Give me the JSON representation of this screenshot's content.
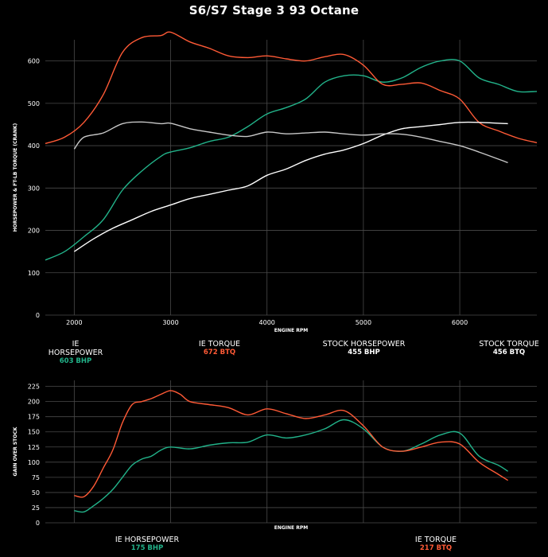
{
  "title": "S6/S7 Stage 3 93 Octane",
  "colors": {
    "ie_hp": "#22b38a",
    "ie_tq": "#ff5a36",
    "stock_hp": "#ffffff",
    "stock_tq": "#c8c8c8",
    "grid": "#4a4a4a"
  },
  "legend_top": {
    "ie_hp": {
      "name": "IE HORSEPOWER",
      "value": "603 BHP"
    },
    "ie_tq": {
      "name": "IE TORQUE",
      "value": "672 BTQ"
    },
    "stock_hp": {
      "name": "STOCK HORSEPOWER",
      "value": "455 BHP"
    },
    "stock_tq": {
      "name": "STOCK TORQUE",
      "value": "456 BTQ"
    }
  },
  "legend_bottom": {
    "ie_hp": {
      "name": "IE HORSEPOWER",
      "value": "175 BHP"
    },
    "ie_tq": {
      "name": "IE TORQUE",
      "value": "217 BTQ"
    }
  },
  "chart_data": [
    {
      "type": "line",
      "title": "S6/S7 Stage 3 93 Octane",
      "xlabel": "ENGINE RPM",
      "ylabel": "HORSEPOWER & FT-LB TORQUE (CRANK)",
      "xlim": [
        1700,
        6800
      ],
      "ylim": [
        0,
        650
      ],
      "xticks": [
        2000,
        3000,
        4000,
        5000,
        6000
      ],
      "yticks": [
        0,
        100,
        200,
        300,
        400,
        500,
        600
      ],
      "grid": true,
      "series": [
        {
          "name": "IE HORSEPOWER",
          "color": "#22b38a",
          "x": [
            1700,
            1900,
            2100,
            2300,
            2500,
            2700,
            2900,
            3000,
            3200,
            3400,
            3600,
            3800,
            4000,
            4200,
            4400,
            4600,
            4800,
            5000,
            5200,
            5400,
            5600,
            5800,
            6000,
            6200,
            6400,
            6600,
            6800
          ],
          "y": [
            130,
            150,
            185,
            225,
            295,
            340,
            375,
            385,
            395,
            410,
            420,
            445,
            475,
            490,
            510,
            550,
            565,
            565,
            550,
            560,
            585,
            600,
            600,
            560,
            545,
            528,
            528
          ]
        },
        {
          "name": "IE TORQUE",
          "color": "#ff5a36",
          "x": [
            1700,
            1900,
            2100,
            2300,
            2500,
            2700,
            2900,
            3000,
            3200,
            3400,
            3600,
            3800,
            4000,
            4200,
            4400,
            4600,
            4800,
            5000,
            5200,
            5400,
            5600,
            5800,
            6000,
            6200,
            6400,
            6600,
            6800
          ],
          "y": [
            405,
            420,
            455,
            520,
            620,
            655,
            660,
            668,
            645,
            630,
            612,
            608,
            612,
            605,
            600,
            610,
            615,
            590,
            545,
            545,
            548,
            530,
            510,
            455,
            435,
            418,
            407
          ]
        },
        {
          "name": "STOCK HORSEPOWER",
          "color": "#ffffff",
          "x": [
            2000,
            2200,
            2400,
            2600,
            2800,
            3000,
            3200,
            3400,
            3600,
            3800,
            4000,
            4200,
            4400,
            4600,
            4800,
            5000,
            5200,
            5400,
            5600,
            5800,
            6000,
            6200,
            6500
          ],
          "y": [
            150,
            180,
            205,
            225,
            245,
            260,
            275,
            285,
            295,
            305,
            330,
            345,
            365,
            380,
            390,
            405,
            425,
            440,
            445,
            450,
            455,
            455,
            452
          ]
        },
        {
          "name": "STOCK TORQUE",
          "color": "#c8c8c8",
          "x": [
            2000,
            2100,
            2300,
            2500,
            2700,
            2900,
            3000,
            3200,
            3400,
            3600,
            3800,
            4000,
            4200,
            4400,
            4600,
            4800,
            5000,
            5200,
            5400,
            5600,
            5800,
            6000,
            6200,
            6500
          ],
          "y": [
            392,
            420,
            430,
            452,
            456,
            452,
            453,
            440,
            432,
            425,
            422,
            432,
            428,
            430,
            432,
            428,
            425,
            428,
            427,
            420,
            410,
            400,
            385,
            360
          ]
        }
      ]
    },
    {
      "type": "line",
      "xlabel": "ENGINE RPM",
      "ylabel": "GAIN OVER STOCK",
      "xlim": [
        1700,
        6800
      ],
      "ylim": [
        0,
        235
      ],
      "xticks": [
        2000,
        3000,
        4000,
        5000,
        6000
      ],
      "yticks": [
        0,
        25,
        50,
        75,
        100,
        125,
        150,
        175,
        200,
        225
      ],
      "grid": true,
      "series": [
        {
          "name": "IE HORSEPOWER",
          "color": "#22b38a",
          "x": [
            2000,
            2100,
            2200,
            2300,
            2400,
            2500,
            2600,
            2700,
            2800,
            2900,
            3000,
            3200,
            3400,
            3600,
            3800,
            4000,
            4200,
            4400,
            4600,
            4800,
            5000,
            5200,
            5400,
            5600,
            5800,
            6000,
            6200,
            6400,
            6500
          ],
          "y": [
            20,
            18,
            28,
            40,
            55,
            75,
            95,
            105,
            110,
            120,
            125,
            122,
            128,
            132,
            133,
            145,
            140,
            145,
            155,
            170,
            155,
            125,
            118,
            130,
            145,
            148,
            110,
            95,
            85
          ]
        },
        {
          "name": "IE TORQUE",
          "color": "#ff5a36",
          "x": [
            2000,
            2100,
            2200,
            2300,
            2400,
            2500,
            2600,
            2700,
            2800,
            2900,
            3000,
            3100,
            3200,
            3400,
            3600,
            3800,
            4000,
            4200,
            4400,
            4600,
            4800,
            5000,
            5200,
            5400,
            5600,
            5800,
            6000,
            6200,
            6400,
            6500
          ],
          "y": [
            45,
            43,
            60,
            90,
            120,
            165,
            195,
            200,
            205,
            212,
            218,
            212,
            200,
            195,
            190,
            178,
            188,
            180,
            172,
            178,
            185,
            160,
            125,
            118,
            125,
            133,
            130,
            100,
            80,
            70
          ]
        }
      ]
    }
  ]
}
